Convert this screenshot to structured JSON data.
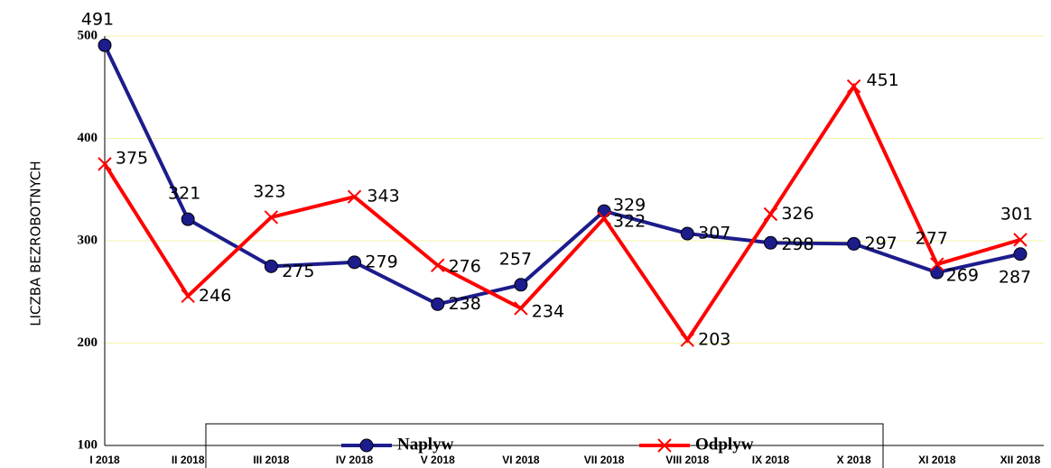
{
  "chart_data": {
    "type": "line",
    "y_label": "LICZBA BEZROBOTNYCH",
    "categories": [
      "I 2018",
      "II 2018",
      "III 2018",
      "IV 2018",
      "V 2018",
      "VI 2018",
      "VII 2018",
      "VIII 2018",
      "IX 2018",
      "X 2018",
      "XI 2018",
      "XII 2018"
    ],
    "series": [
      {
        "name": "Naplyw",
        "color": "#1c1c8c",
        "marker": "circle",
        "values": [
          491,
          321,
          275,
          279,
          238,
          257,
          329,
          307,
          298,
          297,
          269,
          287
        ]
      },
      {
        "name": "Odplyw",
        "color": "#ff0000",
        "marker": "x",
        "values": [
          375,
          246,
          323,
          343,
          276,
          234,
          322,
          203,
          326,
          451,
          277,
          301
        ]
      }
    ],
    "ylim": [
      100,
      500
    ],
    "yticks": [
      100,
      200,
      300,
      400,
      500
    ],
    "grid": true
  }
}
